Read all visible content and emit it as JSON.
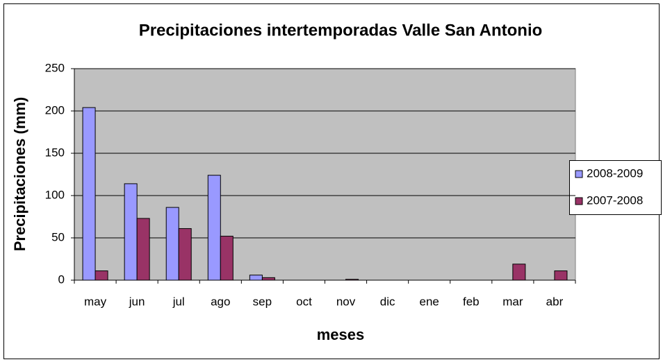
{
  "chart_data": {
    "type": "bar",
    "title": "Precipitaciones intertemporadas Valle San Antonio",
    "x_label": "meses",
    "y_label": "Precipitaciones (mm)",
    "categories": [
      "may",
      "jun",
      "jul",
      "ago",
      "sep",
      "oct",
      "nov",
      "dic",
      "ene",
      "feb",
      "mar",
      "abr"
    ],
    "series": [
      {
        "name": "2008-2009",
        "color": "#9999ff",
        "values": [
          204,
          114,
          86,
          124,
          6,
          0,
          0,
          0,
          0,
          0,
          0,
          0
        ]
      },
      {
        "name": "2007-2008",
        "color": "#993366",
        "values": [
          11,
          73,
          61,
          52,
          3,
          0,
          1,
          0,
          0,
          0,
          19,
          11
        ]
      }
    ],
    "ylim": [
      0,
      250
    ],
    "yticks": [
      0,
      50,
      100,
      150,
      200,
      250
    ],
    "grid": true,
    "legend": "right"
  }
}
